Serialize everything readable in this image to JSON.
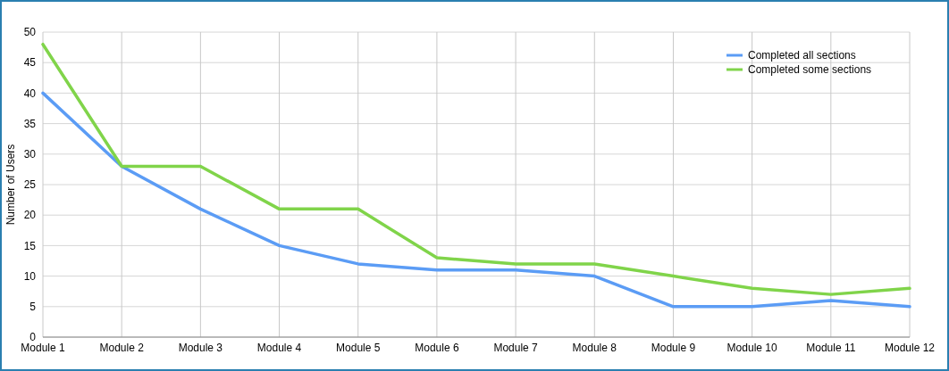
{
  "chart_data": {
    "type": "line",
    "ylabel": "Number of Users",
    "categories": [
      "Module 1",
      "Module 2",
      "Module 3",
      "Module 4",
      "Module 5",
      "Module 6",
      "Module 7",
      "Module 8",
      "Module 9",
      "Module 10",
      "Module 11",
      "Module 12"
    ],
    "series": [
      {
        "name": "Completed all sections",
        "color": "#5b9cf5",
        "values": [
          40,
          28,
          21,
          15,
          12,
          11,
          11,
          10,
          5,
          5,
          6,
          5
        ]
      },
      {
        "name": "Completed some sections",
        "color": "#80d44a",
        "values": [
          48,
          28,
          28,
          21,
          21,
          13,
          12,
          12,
          10,
          8,
          7,
          8
        ]
      }
    ],
    "ylim": [
      0,
      50
    ],
    "yticks": [
      0,
      5,
      10,
      15,
      20,
      25,
      30,
      35,
      40,
      45,
      50
    ],
    "grid": true,
    "legend": "top right",
    "marker": "none",
    "line_style": "solid"
  }
}
